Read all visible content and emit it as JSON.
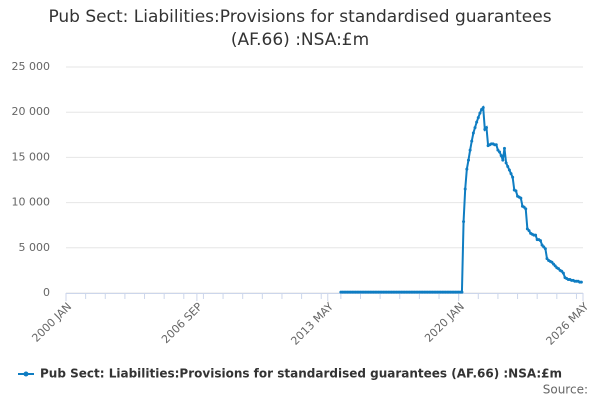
{
  "chart_data": {
    "type": "line",
    "title": "Pub Sect: Liabilities:Provisions for standardised guarantees (AF.66) :NSA:£m",
    "source": "Source:",
    "x": [
      "2014 JAN",
      "2014 FEB",
      "2014 MAR",
      "2014 APR",
      "2014 MAY",
      "2014 JUN",
      "2014 JUL",
      "2014 AUG",
      "2014 SEP",
      "2014 OCT",
      "2014 NOV",
      "2014 DEC",
      "2015 JAN",
      "2015 FEB",
      "2015 MAR",
      "2015 APR",
      "2015 MAY",
      "2015 JUN",
      "2015 JUL",
      "2015 AUG",
      "2015 SEP",
      "2015 OCT",
      "2015 NOV",
      "2015 DEC",
      "2016 JAN",
      "2016 FEB",
      "2016 MAR",
      "2016 APR",
      "2016 MAY",
      "2016 JUN",
      "2016 JUL",
      "2016 AUG",
      "2016 SEP",
      "2016 OCT",
      "2016 NOV",
      "2016 DEC",
      "2017 JAN",
      "2017 FEB",
      "2017 MAR",
      "2017 APR",
      "2017 MAY",
      "2017 JUN",
      "2017 JUL",
      "2017 AUG",
      "2017 SEP",
      "2017 OCT",
      "2017 NOV",
      "2017 DEC",
      "2018 JAN",
      "2018 FEB",
      "2018 MAR",
      "2018 APR",
      "2018 MAY",
      "2018 JUN",
      "2018 JUL",
      "2018 AUG",
      "2018 SEP",
      "2018 OCT",
      "2018 NOV",
      "2018 DEC",
      "2019 JAN",
      "2019 FEB",
      "2019 MAR",
      "2019 APR",
      "2019 MAY",
      "2019 JUN",
      "2019 JUL",
      "2019 AUG",
      "2019 SEP",
      "2019 OCT",
      "2019 NOV",
      "2019 DEC",
      "2020 JAN",
      "2020 FEB",
      "2020 MAR",
      "2020 APR",
      "2020 MAY",
      "2020 JUN",
      "2020 JUL",
      "2020 AUG",
      "2020 SEP",
      "2020 OCT",
      "2020 NOV",
      "2020 DEC",
      "2021 JAN",
      "2021 FEB",
      "2021 MAR",
      "2021 APR",
      "2021 MAY",
      "2021 JUN",
      "2021 JUL",
      "2021 AUG",
      "2021 SEP",
      "2021 OCT",
      "2021 NOV",
      "2021 DEC",
      "2022 JAN",
      "2022 FEB",
      "2022 MAR",
      "2022 APR",
      "2022 MAY",
      "2022 JUN",
      "2022 JUL",
      "2022 AUG",
      "2022 SEP",
      "2022 OCT",
      "2022 NOV",
      "2022 DEC",
      "2023 JAN",
      "2023 FEB",
      "2023 MAR",
      "2023 APR",
      "2023 MAY",
      "2023 JUN",
      "2023 JUL",
      "2023 AUG",
      "2023 SEP",
      "2023 OCT",
      "2023 NOV",
      "2023 DEC",
      "2024 JAN",
      "2024 FEB",
      "2024 MAR",
      "2024 APR",
      "2024 MAY",
      "2024 JUN",
      "2024 JUL",
      "2024 AUG",
      "2024 SEP",
      "2024 OCT",
      "2024 NOV",
      "2024 DEC",
      "2025 JAN",
      "2025 FEB",
      "2025 MAR",
      "2025 APR",
      "2025 MAY",
      "2025 JUN",
      "2025 JUL",
      "2025 AUG",
      "2025 SEP",
      "2025 OCT",
      "2025 NOV",
      "2025 DEC",
      "2026 JAN",
      "2026 FEB",
      "2026 MAR",
      "2026 APR"
    ],
    "series": [
      {
        "name": "Pub Sect: Liabilities:Provisions for standardised guarantees (AF.66) :NSA:£m",
        "color": "#0f7dc2",
        "values": [
          100,
          100,
          100,
          100,
          100,
          100,
          100,
          100,
          100,
          100,
          100,
          100,
          100,
          100,
          100,
          100,
          100,
          100,
          100,
          100,
          100,
          100,
          100,
          100,
          100,
          100,
          100,
          100,
          100,
          100,
          100,
          100,
          100,
          100,
          100,
          100,
          100,
          100,
          100,
          100,
          100,
          100,
          100,
          100,
          100,
          100,
          100,
          100,
          100,
          100,
          100,
          100,
          100,
          100,
          100,
          100,
          100,
          100,
          100,
          100,
          100,
          100,
          100,
          100,
          100,
          100,
          100,
          100,
          100,
          100,
          100,
          100,
          100,
          100,
          100,
          7900,
          11500,
          13700,
          14700,
          15800,
          16800,
          17700,
          18300,
          18900,
          19400,
          19900,
          20300,
          20500,
          18100,
          18300,
          16300,
          16400,
          16500,
          16500,
          16400,
          16400,
          15800,
          15600,
          15200,
          14700,
          16000,
          14400,
          14000,
          13600,
          13200,
          12800,
          11400,
          11300,
          10700,
          10600,
          10500,
          9600,
          9500,
          9300,
          7100,
          6900,
          6600,
          6500,
          6400,
          6400,
          5900,
          5900,
          5800,
          5300,
          5100,
          4900,
          3800,
          3600,
          3500,
          3400,
          3200,
          3000,
          2800,
          2700,
          2500,
          2400,
          2200,
          1700,
          1600,
          1500,
          1500,
          1400,
          1400,
          1300,
          1300,
          1300,
          1200,
          1200
        ]
      }
    ],
    "xlim": [
      "2000 JAN",
      "2026 MAY"
    ],
    "xticks": [
      "2000 JAN",
      "2006 SEP",
      "2013 MAY",
      "2020 JAN",
      "2026 MAY"
    ],
    "ylim": [
      0,
      25000
    ],
    "yticks": [
      {
        "value": 0,
        "label": "0"
      },
      {
        "value": 5000,
        "label": "5 000"
      },
      {
        "value": 10000,
        "label": "10 000"
      },
      {
        "value": 15000,
        "label": "15 000"
      },
      {
        "value": 20000,
        "label": "20 000"
      },
      {
        "value": 25000,
        "label": "25 000"
      }
    ],
    "grid": true,
    "legend": "bottom"
  }
}
